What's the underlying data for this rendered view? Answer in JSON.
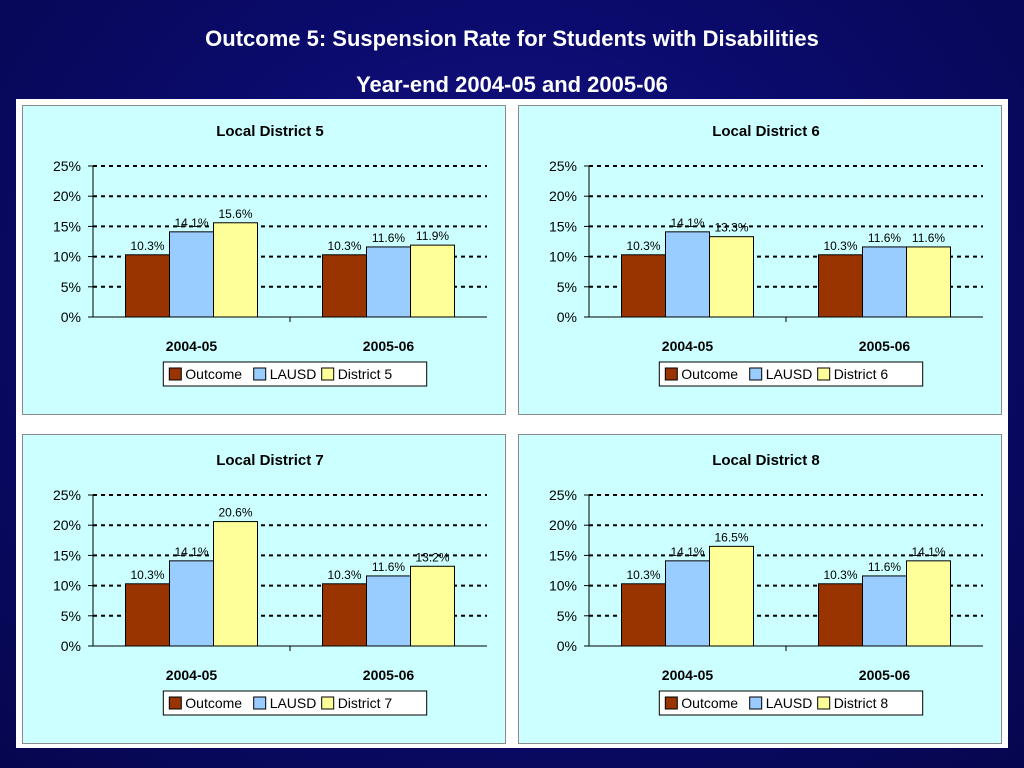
{
  "slide": {
    "title": "Outcome 5: Suspension Rate for Students with Disabilities",
    "subtitle": "Year-end 2004-05 and 2005-06"
  },
  "colors": {
    "outcome": "#993300",
    "lausd": "#99ccff",
    "district": "#ffff99",
    "panel_bg": "#ccffff"
  },
  "chart_data": [
    {
      "type": "bar",
      "title": "Local District 5",
      "categories": [
        "2004-05",
        "2005-06"
      ],
      "series": [
        {
          "name": "Outcome",
          "values": [
            10.3,
            10.3
          ],
          "labels": [
            "10.3%",
            "10.3%"
          ]
        },
        {
          "name": "LAUSD",
          "values": [
            14.1,
            11.6
          ],
          "labels": [
            "14.1%",
            "11.6%"
          ]
        },
        {
          "name": "District 5",
          "values": [
            15.6,
            11.9
          ],
          "labels": [
            "15.6%",
            "11.9%"
          ]
        }
      ],
      "ylim": [
        0,
        25
      ],
      "yticks": [
        "0%",
        "5%",
        "10%",
        "15%",
        "20%",
        "25%"
      ],
      "grid": "dashed horizontal",
      "legend": "bottom"
    },
    {
      "type": "bar",
      "title": "Local District 6",
      "categories": [
        "2004-05",
        "2005-06"
      ],
      "series": [
        {
          "name": "Outcome",
          "values": [
            10.3,
            10.3
          ],
          "labels": [
            "10.3%",
            "10.3%"
          ]
        },
        {
          "name": "LAUSD",
          "values": [
            14.1,
            11.6
          ],
          "labels": [
            "14.1%",
            "11.6%"
          ]
        },
        {
          "name": "District 6",
          "values": [
            13.3,
            11.6
          ],
          "labels": [
            "13.3%",
            "11.6%"
          ]
        }
      ],
      "ylim": [
        0,
        25
      ],
      "yticks": [
        "0%",
        "5%",
        "10%",
        "15%",
        "20%",
        "25%"
      ],
      "grid": "dashed horizontal",
      "legend": "bottom"
    },
    {
      "type": "bar",
      "title": "Local District 7",
      "categories": [
        "2004-05",
        "2005-06"
      ],
      "series": [
        {
          "name": "Outcome",
          "values": [
            10.3,
            10.3
          ],
          "labels": [
            "10.3%",
            "10.3%"
          ]
        },
        {
          "name": "LAUSD",
          "values": [
            14.1,
            11.6
          ],
          "labels": [
            "14.1%",
            "11.6%"
          ]
        },
        {
          "name": "District 7",
          "values": [
            20.6,
            13.2
          ],
          "labels": [
            "20.6%",
            "13.2%"
          ]
        }
      ],
      "ylim": [
        0,
        25
      ],
      "yticks": [
        "0%",
        "5%",
        "10%",
        "15%",
        "20%",
        "25%"
      ],
      "grid": "dashed horizontal",
      "legend": "bottom"
    },
    {
      "type": "bar",
      "title": "Local District 8",
      "categories": [
        "2004-05",
        "2005-06"
      ],
      "series": [
        {
          "name": "Outcome",
          "values": [
            10.3,
            10.3
          ],
          "labels": [
            "10.3%",
            "10.3%"
          ]
        },
        {
          "name": "LAUSD",
          "values": [
            14.1,
            11.6
          ],
          "labels": [
            "14.1%",
            "11.6%"
          ]
        },
        {
          "name": "District 8",
          "values": [
            16.5,
            14.1
          ],
          "labels": [
            "16.5%",
            "14.1%"
          ]
        }
      ],
      "ylim": [
        0,
        25
      ],
      "yticks": [
        "0%",
        "5%",
        "10%",
        "15%",
        "20%",
        "25%"
      ],
      "grid": "dashed horizontal",
      "legend": "bottom"
    }
  ]
}
